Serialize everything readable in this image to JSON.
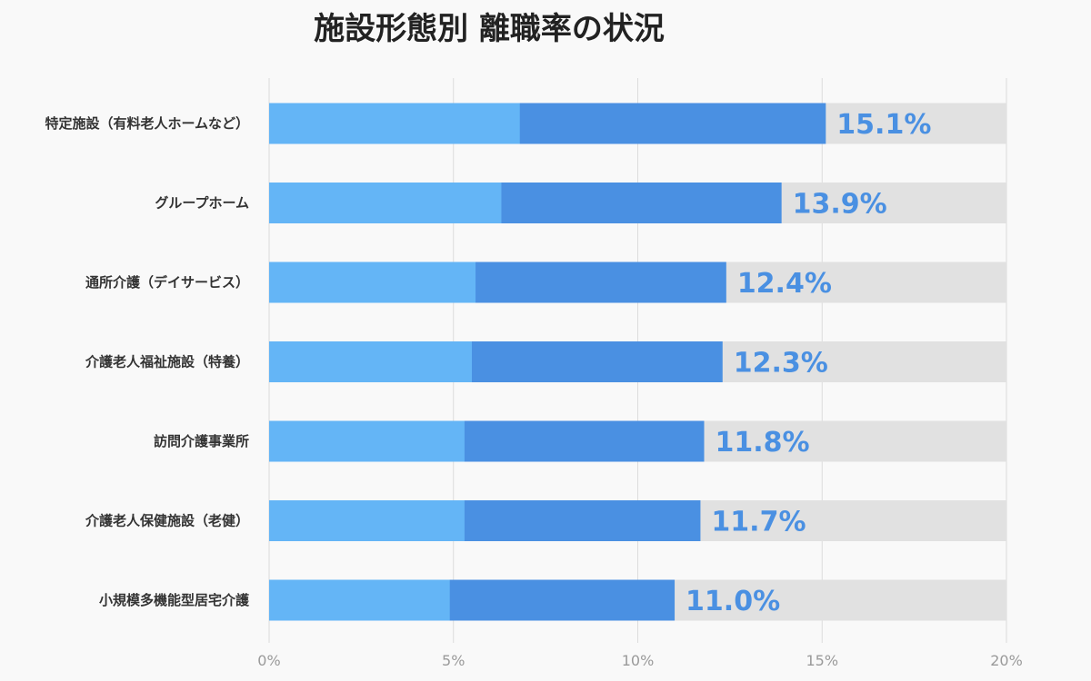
{
  "chart_data": {
    "type": "bar",
    "orientation": "horizontal",
    "title": "施設形態別 離職率の状況",
    "categories": [
      "特定施設（有料老人ホームなど）",
      "グループホーム",
      "通所介護（デイサービス）",
      "介護老人福祉施設（特養）",
      "訪問介護事業所",
      "介護老人保健施設（老健）",
      "小規模多機能型居宅介護"
    ],
    "values": [
      15.1,
      13.9,
      12.4,
      12.3,
      11.8,
      11.7,
      11.0
    ],
    "value_labels": [
      "15.1%",
      "13.9%",
      "12.4%",
      "12.3%",
      "11.8%",
      "11.7%",
      "11.0%"
    ],
    "light_segment_values": [
      6.8,
      6.3,
      5.6,
      5.5,
      5.3,
      5.3,
      4.9
    ],
    "xlim": [
      0,
      20
    ],
    "x_ticks": [
      0,
      5,
      10,
      15,
      20
    ],
    "x_tick_labels": [
      "0%",
      "5%",
      "10%",
      "15%",
      "20%"
    ],
    "grid": true,
    "legend": "none",
    "colors": {
      "light_segment": "#64b5f6",
      "dark_segment": "#4a90e2",
      "track": "#e1e1e1",
      "value_label": "#4a90e2"
    }
  }
}
